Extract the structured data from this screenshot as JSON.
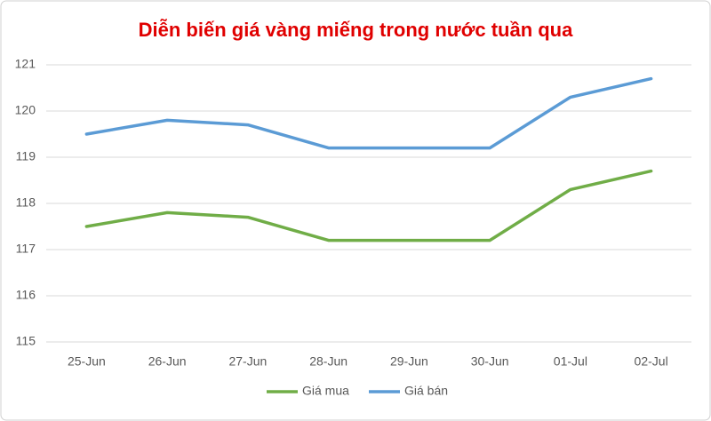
{
  "chart_data": {
    "type": "line",
    "title": "Diễn biến giá vàng miếng trong nước tuần qua",
    "categories": [
      "25-Jun",
      "26-Jun",
      "27-Jun",
      "28-Jun",
      "29-Jun",
      "30-Jun",
      "01-Jul",
      "02-Jul"
    ],
    "series": [
      {
        "name": "Giá mua",
        "color": "#70ad47",
        "values": [
          117.5,
          117.8,
          117.7,
          117.2,
          117.2,
          117.2,
          118.3,
          118.7
        ]
      },
      {
        "name": "Giá bán",
        "color": "#5b9bd5",
        "values": [
          119.5,
          119.8,
          119.7,
          119.2,
          119.2,
          119.2,
          120.3,
          120.7
        ]
      }
    ],
    "ylim": [
      115,
      121
    ],
    "yticks": [
      115,
      116,
      117,
      118,
      119,
      120,
      121
    ],
    "grid": true,
    "legend": "bottom"
  }
}
